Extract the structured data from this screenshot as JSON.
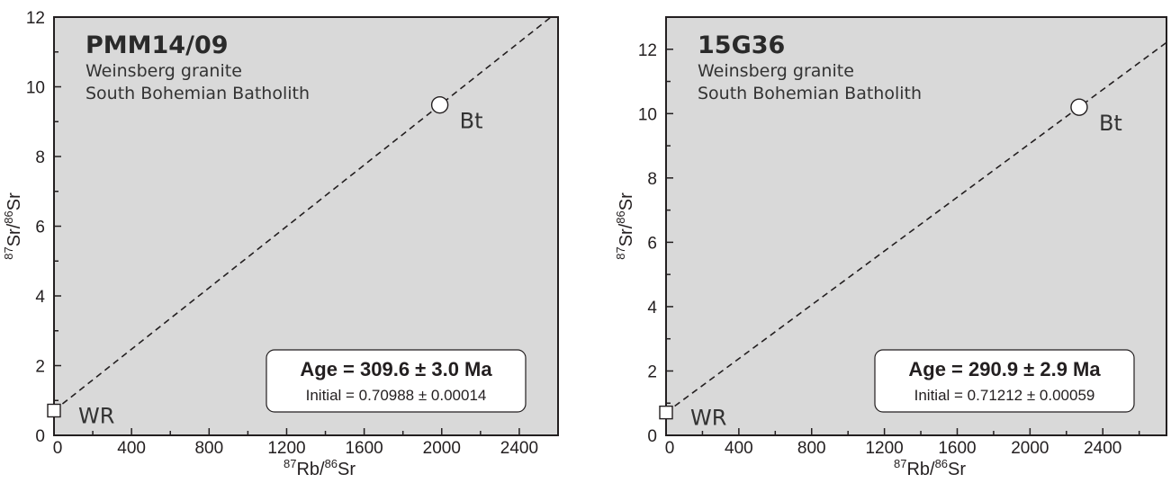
{
  "chart_data": [
    {
      "type": "scatter",
      "title": "PMM14/09",
      "subtitle": [
        "Weinsberg granite",
        "South Bohemian Batholith"
      ],
      "xlabel": {
        "iso1": "87",
        "el1": "Rb/",
        "iso2": "86",
        "el2": "Sr"
      },
      "ylabel": {
        "iso1": "87",
        "el1": "Sr/",
        "iso2": "86",
        "el2": "Sr"
      },
      "xlim": [
        0,
        2600
      ],
      "ylim": [
        0,
        12
      ],
      "xticks": [
        0,
        400,
        800,
        1200,
        1600,
        2000,
        2400
      ],
      "yticks": [
        0,
        2,
        4,
        6,
        8,
        10,
        12
      ],
      "xtick_labels": [
        "0",
        "400",
        "800",
        "1200",
        "1600",
        "2000",
        "2400"
      ],
      "ytick_labels": [
        "0",
        "2",
        "4",
        "6",
        "8",
        "10",
        "12"
      ],
      "grid": false,
      "points": [
        {
          "label": "WR",
          "x": 0,
          "y": 0.71,
          "marker": "square"
        },
        {
          "label": "Bt",
          "x": 1990,
          "y": 9.48,
          "marker": "circle"
        }
      ],
      "isochron": {
        "style": "dashed",
        "x": [
          0,
          2600
        ],
        "y": [
          0.71,
          12.16
        ]
      },
      "annotation": {
        "age": "Age = 309.6 ± 3.0 Ma",
        "initial": "Initial = 0.70988 ± 0.00014",
        "placement": "bottom-right"
      },
      "background": "#d9d9d9"
    },
    {
      "type": "scatter",
      "title": "15G36",
      "subtitle": [
        "Weinsberg granite",
        "South Bohemian Batholith"
      ],
      "xlabel": {
        "iso1": "87",
        "el1": "Rb/",
        "iso2": "86",
        "el2": "Sr"
      },
      "ylabel": {
        "iso1": "87",
        "el1": "Sr/",
        "iso2": "86",
        "el2": "Sr"
      },
      "xlim": [
        0,
        2750
      ],
      "ylim": [
        0,
        13
      ],
      "xticks": [
        0,
        400,
        800,
        1200,
        1600,
        2000,
        2400
      ],
      "yticks": [
        0,
        2,
        4,
        6,
        8,
        10,
        12
      ],
      "xtick_labels": [
        "0",
        "400",
        "800",
        "1200",
        "1600",
        "2000",
        "2400"
      ],
      "ytick_labels": [
        "0",
        "2",
        "4",
        "6",
        "8",
        "10",
        "12"
      ],
      "grid": false,
      "points": [
        {
          "label": "WR",
          "x": 0,
          "y": 0.71,
          "marker": "square"
        },
        {
          "label": "Bt",
          "x": 2270,
          "y": 10.2,
          "marker": "circle"
        }
      ],
      "isochron": {
        "style": "dashed",
        "x": [
          0,
          2750
        ],
        "y": [
          0.71,
          12.21
        ]
      },
      "annotation": {
        "age": "Age = 290.9 ± 2.9 Ma",
        "initial": "Initial = 0.71212 ± 0.00059",
        "placement": "bottom-right"
      },
      "background": "#d9d9d9"
    }
  ]
}
